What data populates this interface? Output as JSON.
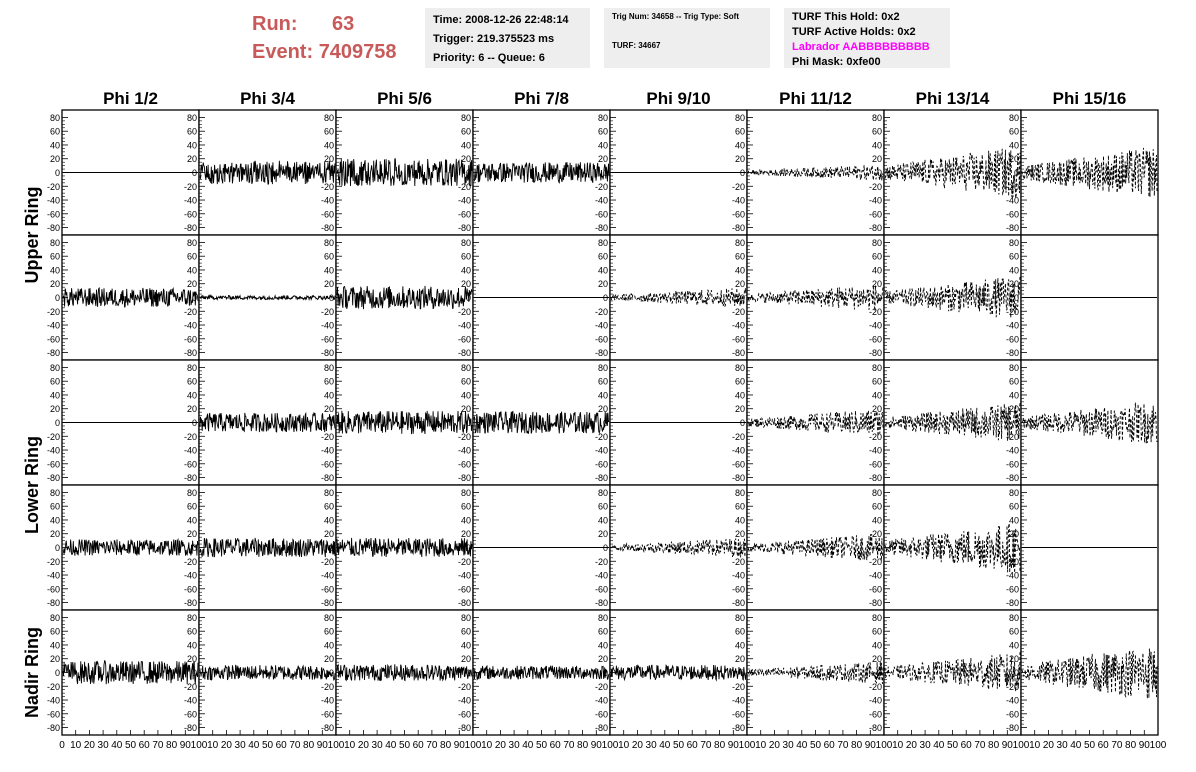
{
  "header": {
    "run_label": "Run:",
    "run_value": "63",
    "event_label": "Event:",
    "event_value": "7409758"
  },
  "info_box_1": {
    "time": "Time: 2008-12-26 22:48:14",
    "trigger": "Trigger: 219.375523 ms",
    "priority": "Priority: 6 -- Queue: 6"
  },
  "info_box_2": {
    "trig": "Trig Num: 34658 -- Trig Type: Soft",
    "turf": "TURF: 34667"
  },
  "info_box_3": {
    "this_hold": "TURF This Hold: 0x2",
    "active_holds": "TURF Active Holds: 0x2",
    "labrador": "Labrador AABBBBBBBBB",
    "phi_mask": "Phi Mask: 0xfe00"
  },
  "colors": {
    "run_text": "#c85a5a",
    "labrador_text": "#ff00ff",
    "info_bg": "#eeeeee"
  },
  "chart_data": {
    "type": "line",
    "columns": [
      "Phi 1/2",
      "Phi 3/4",
      "Phi 5/6",
      "Phi 7/8",
      "Phi 9/10",
      "Phi 11/12",
      "Phi 13/14",
      "Phi 15/16"
    ],
    "ring_labels": [
      "Upper Ring",
      "Lower Ring",
      "Nadir Ring"
    ],
    "ylim": [
      -85,
      85
    ],
    "y_ticks": [
      -80,
      -60,
      -40,
      -20,
      0,
      20,
      40,
      60,
      80
    ],
    "xlim": [
      0,
      100
    ],
    "x_ticks": [
      0,
      10,
      20,
      30,
      40,
      50,
      60,
      70,
      80,
      90,
      100
    ],
    "row_groups": [
      0,
      0,
      1,
      1,
      2
    ],
    "panels": [
      [
        {
          "amp": 0,
          "style": "solid"
        },
        {
          "amp": 17,
          "style": "solid"
        },
        {
          "amp": 20,
          "style": "solid"
        },
        {
          "amp": 15,
          "style": "solid"
        },
        {
          "amp": 0,
          "style": "solid"
        },
        {
          "amp": 8,
          "style": "dashed"
        },
        {
          "amp": 26,
          "style": "dashed"
        },
        {
          "amp": 26,
          "style": "dashed"
        }
      ],
      [
        {
          "amp": 14,
          "style": "solid"
        },
        {
          "amp": 3,
          "style": "solid"
        },
        {
          "amp": 17,
          "style": "solid"
        },
        {
          "amp": 0,
          "style": "solid"
        },
        {
          "amp": 10,
          "style": "dashed"
        },
        {
          "amp": 14,
          "style": "dashed"
        },
        {
          "amp": 22,
          "style": "dashed"
        },
        {
          "amp": 0,
          "style": "solid"
        }
      ],
      [
        {
          "amp": 0,
          "style": "solid"
        },
        {
          "amp": 14,
          "style": "solid"
        },
        {
          "amp": 17,
          "style": "solid"
        },
        {
          "amp": 16,
          "style": "solid"
        },
        {
          "amp": 0,
          "style": "solid"
        },
        {
          "amp": 14,
          "style": "dashed"
        },
        {
          "amp": 20,
          "style": "dashed"
        },
        {
          "amp": 22,
          "style": "dashed"
        }
      ],
      [
        {
          "amp": 12,
          "style": "solid"
        },
        {
          "amp": 14,
          "style": "solid"
        },
        {
          "amp": 14,
          "style": "solid"
        },
        {
          "amp": 0,
          "style": "solid"
        },
        {
          "amp": 10,
          "style": "dashed"
        },
        {
          "amp": 14,
          "style": "dashed"
        },
        {
          "amp": 26,
          "style": "dashed"
        },
        {
          "amp": 0,
          "style": "solid"
        }
      ],
      [
        {
          "amp": 17,
          "style": "solid"
        },
        {
          "amp": 11,
          "style": "solid"
        },
        {
          "amp": 12,
          "style": "solid"
        },
        {
          "amp": 10,
          "style": "solid"
        },
        {
          "amp": 11,
          "style": "solid"
        },
        {
          "amp": 11,
          "style": "dashed"
        },
        {
          "amp": 20,
          "style": "dashed"
        },
        {
          "amp": 28,
          "style": "dashed"
        }
      ]
    ]
  }
}
